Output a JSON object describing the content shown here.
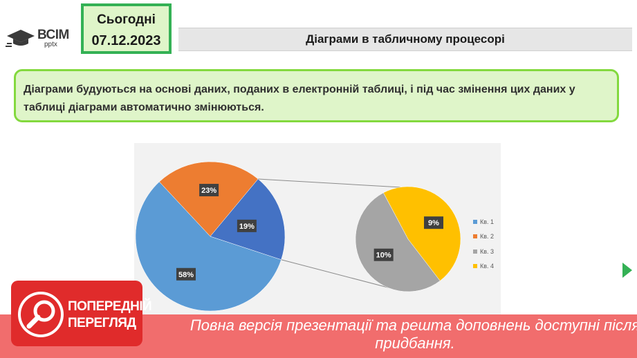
{
  "logo": {
    "main": "ВСІМ",
    "sub": "pptx"
  },
  "date_box": {
    "label": "Сьогодні",
    "date": "07.12.2023"
  },
  "header": {
    "title": "Діаграми в табличному процесорі"
  },
  "note": {
    "text": "Діаграми будуються на основі даних, поданих в електронній таблиці, і під час змінення цих даних у таблиці діаграми автоматично змінюються."
  },
  "chart_data": {
    "type": "pie",
    "subtype": "pie-of-pie",
    "categories": [
      "Кв. 1",
      "Кв. 2",
      "Кв. 3",
      "Кв. 4"
    ],
    "values": [
      58,
      23,
      10,
      9
    ],
    "value_suffix": "%",
    "main_pie_labels": [
      "58%",
      "23%",
      "19%"
    ],
    "secondary_pie_labels": [
      "9%",
      "10%"
    ],
    "colors": [
      "#5b9bd5",
      "#ed7d31",
      "#a5a5a5",
      "#ffc000"
    ],
    "other_slice_color": "#4472c4",
    "legend": "right"
  },
  "banner": {
    "preview_label": "ПОПЕРЕДНІЙ ПЕРЕГЛЯД",
    "message": "Повна версія презентації та решта доповнень доступні після придбання."
  },
  "colors": {
    "accent_green": "#34b155",
    "light_green": "#dff5c9",
    "note_border": "#83d93e",
    "banner_red": "#f16d6d",
    "badge_red": "#e02b2b"
  }
}
